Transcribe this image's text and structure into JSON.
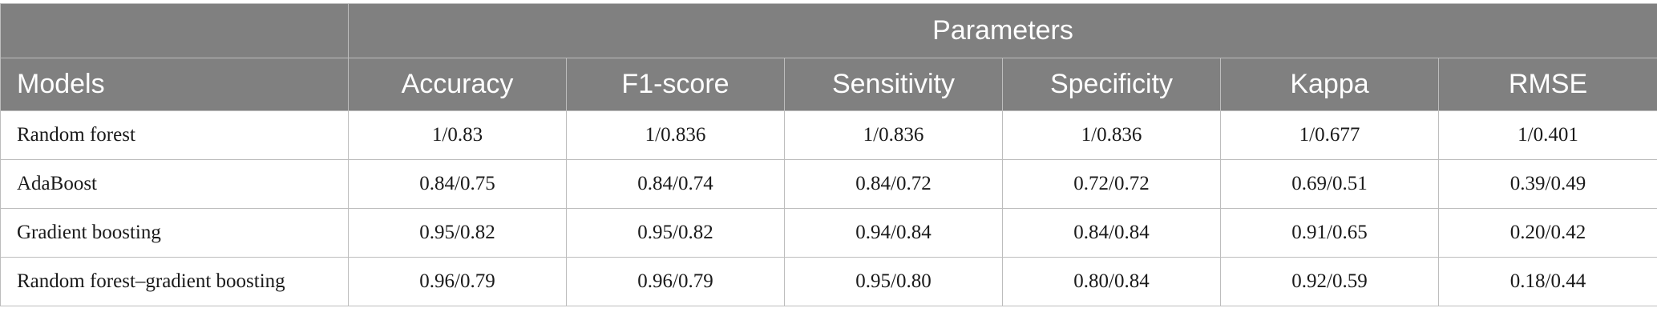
{
  "table": {
    "group_header": "Parameters",
    "row_header": "Models",
    "columns": [
      "Accuracy",
      "F1-score",
      "Sensitivity",
      "Specificity",
      "Kappa",
      "RMSE"
    ],
    "rows": [
      {
        "model": "Random forest",
        "values": [
          "1/0.83",
          "1/0.836",
          "1/0.836",
          "1/0.836",
          "1/0.677",
          "1/0.401"
        ]
      },
      {
        "model": "AdaBoost",
        "values": [
          "0.84/0.75",
          "0.84/0.74",
          "0.84/0.72",
          "0.72/0.72",
          "0.69/0.51",
          "0.39/0.49"
        ]
      },
      {
        "model": "Gradient boosting",
        "values": [
          "0.95/0.82",
          "0.95/0.82",
          "0.94/0.84",
          "0.84/0.84",
          "0.91/0.65",
          "0.20/0.42"
        ]
      },
      {
        "model": "Random forest–gradient boosting",
        "values": [
          "0.96/0.79",
          "0.96/0.79",
          "0.95/0.80",
          "0.80/0.84",
          "0.92/0.59",
          "0.18/0.44"
        ]
      }
    ]
  }
}
